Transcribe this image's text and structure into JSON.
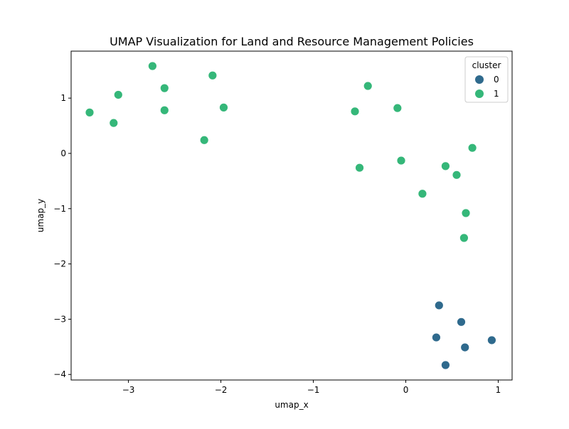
{
  "chart_data": {
    "type": "scatter",
    "title": "UMAP Visualization for Land and Resource Management Policies",
    "xlabel": "umap_x",
    "ylabel": "umap_y",
    "xlim": [
      -3.62,
      1.15
    ],
    "ylim": [
      -4.1,
      1.85
    ],
    "xticks": [
      -3,
      -2,
      -1,
      0,
      1
    ],
    "yticks": [
      -4,
      -3,
      -2,
      -1,
      0,
      1
    ],
    "grid": false,
    "legend": {
      "title": "cluster",
      "placement": "top-right"
    },
    "series": [
      {
        "name": "0",
        "color": "#2f6a8d",
        "points": [
          [
            0.36,
            -2.75
          ],
          [
            0.6,
            -3.05
          ],
          [
            0.33,
            -3.33
          ],
          [
            0.64,
            -3.51
          ],
          [
            0.93,
            -3.38
          ],
          [
            0.43,
            -3.83
          ]
        ]
      },
      {
        "name": "1",
        "color": "#35b779",
        "points": [
          [
            -3.42,
            0.74
          ],
          [
            -3.16,
            0.55
          ],
          [
            -3.11,
            1.06
          ],
          [
            -2.74,
            1.58
          ],
          [
            -2.61,
            1.18
          ],
          [
            -2.61,
            0.78
          ],
          [
            -2.18,
            0.24
          ],
          [
            -2.09,
            1.41
          ],
          [
            -1.97,
            0.83
          ],
          [
            -0.55,
            0.76
          ],
          [
            -0.41,
            1.22
          ],
          [
            -0.5,
            -0.26
          ],
          [
            -0.09,
            0.82
          ],
          [
            -0.05,
            -0.13
          ],
          [
            0.18,
            -0.73
          ],
          [
            0.43,
            -0.23
          ],
          [
            0.55,
            -0.39
          ],
          [
            0.72,
            0.1
          ],
          [
            0.65,
            -1.08
          ],
          [
            0.63,
            -1.53
          ]
        ]
      }
    ]
  }
}
